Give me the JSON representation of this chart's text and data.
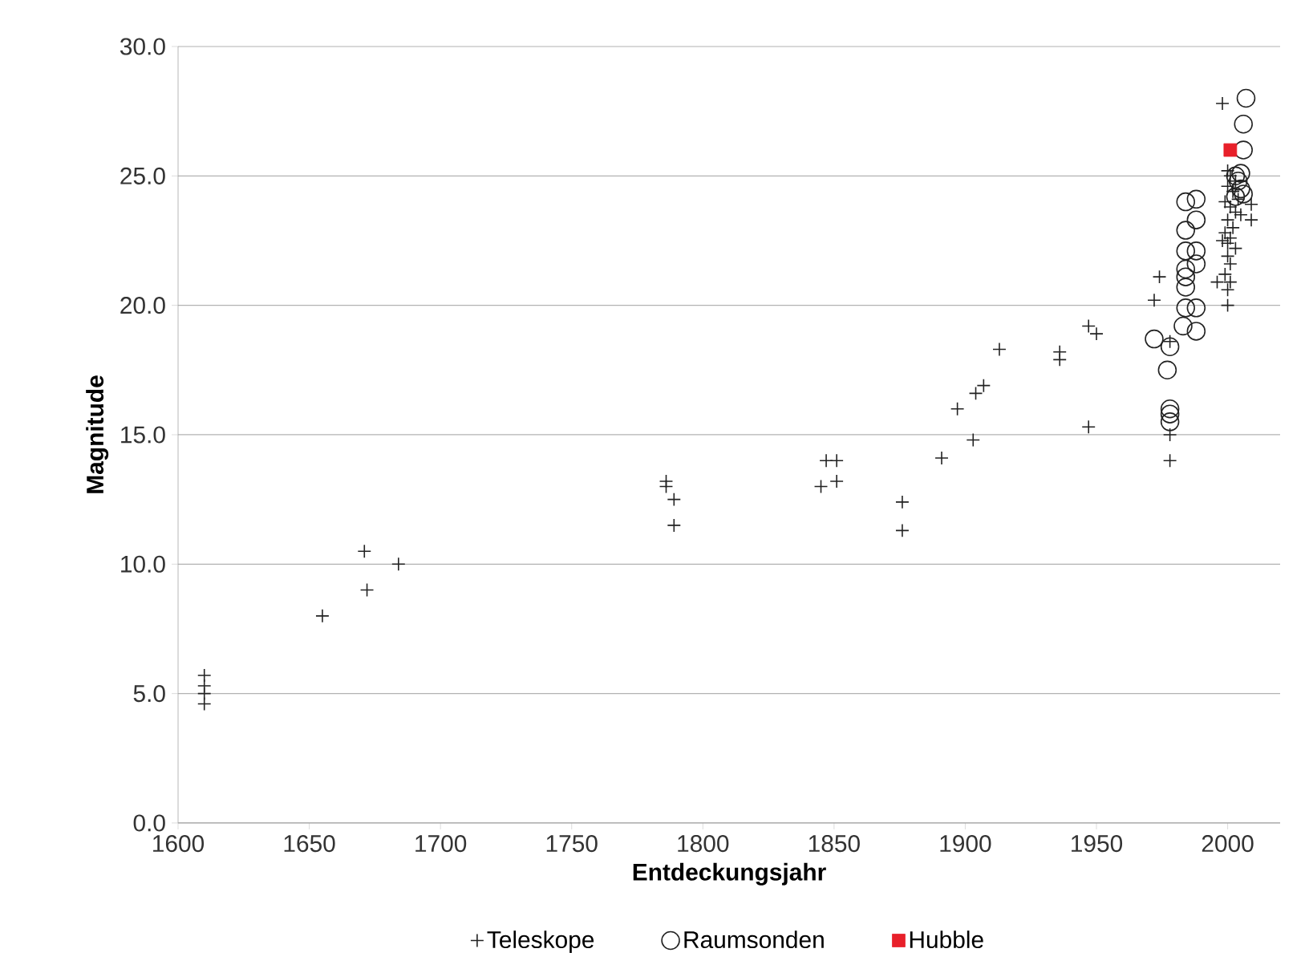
{
  "chart_data": {
    "type": "scatter",
    "xlabel": "Entdeckungsjahr",
    "ylabel": "Magnitude",
    "xlim": [
      1600,
      2020
    ],
    "xticks": [
      1600,
      1650,
      1700,
      1750,
      1800,
      1850,
      1900,
      1950,
      2000
    ],
    "ylim": [
      0,
      30
    ],
    "yticks": [
      {
        "value": 0,
        "label": "0.0"
      },
      {
        "value": 5,
        "label": "5.0"
      },
      {
        "value": 10,
        "label": "10.0"
      },
      {
        "value": 15,
        "label": "15.0"
      },
      {
        "value": 20,
        "label": "20.0"
      },
      {
        "value": 25,
        "label": "25.0"
      },
      {
        "value": 30,
        "label": "30.0"
      }
    ],
    "grid": "y",
    "legend": "bottom",
    "series": [
      {
        "name": "Teleskope",
        "color": "#222222",
        "marker": "cross",
        "x": [
          1610,
          1610,
          1610,
          1610,
          1655,
          1671,
          1672,
          1684,
          1786,
          1786,
          1789,
          1789,
          1845,
          1847,
          1851,
          1851,
          1876,
          1876,
          1891,
          1897,
          1903,
          1904,
          1907,
          1913,
          1936,
          1936,
          1947,
          1950,
          1947,
          1974,
          1972,
          1978,
          1978,
          1978,
          1998,
          2000,
          2001,
          2000,
          2002,
          1999,
          2001,
          2003,
          2000,
          2002,
          1999,
          2001,
          2000,
          1998,
          2003,
          2000,
          2001,
          1999,
          2001,
          1996,
          2000,
          2000,
          2009,
          2009,
          2004,
          2005,
          2003
        ],
        "values": [
          5.7,
          5.3,
          5.0,
          4.6,
          8.0,
          10.5,
          9.0,
          10.0,
          13.2,
          13.0,
          12.5,
          11.5,
          13.0,
          14.0,
          14.0,
          13.2,
          12.4,
          11.3,
          14.1,
          16.0,
          14.8,
          16.6,
          16.9,
          18.3,
          18.2,
          17.9,
          19.2,
          18.9,
          15.3,
          21.1,
          20.2,
          18.6,
          15.0,
          14.0,
          27.8,
          25.2,
          25.0,
          24.6,
          24.4,
          24.0,
          23.8,
          23.6,
          23.3,
          23.0,
          22.8,
          22.6,
          22.4,
          22.5,
          22.2,
          21.9,
          21.6,
          21.2,
          20.9,
          20.9,
          20.6,
          20.0,
          23.9,
          23.3,
          24.1,
          23.5,
          24.8
        ]
      },
      {
        "name": "Raumsonden",
        "color": "#222222",
        "marker": "circle",
        "x": [
          2007,
          2006,
          2006,
          1972,
          1978,
          1977,
          1978,
          1978,
          1978,
          1983,
          1988,
          1984,
          1988,
          1984,
          1984,
          1984,
          1988,
          1984,
          1988,
          1984,
          1988,
          1984,
          1988,
          2003,
          2004,
          2005,
          2006,
          2003,
          2005
        ],
        "values": [
          28.0,
          27.0,
          26.0,
          18.7,
          18.4,
          17.5,
          16.0,
          15.8,
          15.5,
          19.2,
          19.0,
          19.9,
          19.9,
          20.7,
          21.1,
          21.4,
          21.6,
          22.1,
          22.1,
          22.9,
          23.3,
          24.0,
          24.1,
          25.0,
          24.8,
          24.5,
          24.3,
          24.2,
          25.1
        ]
      },
      {
        "name": "Hubble",
        "color": "#e8202a",
        "marker": "square",
        "x": [
          2001
        ],
        "values": [
          26.0
        ]
      }
    ]
  }
}
